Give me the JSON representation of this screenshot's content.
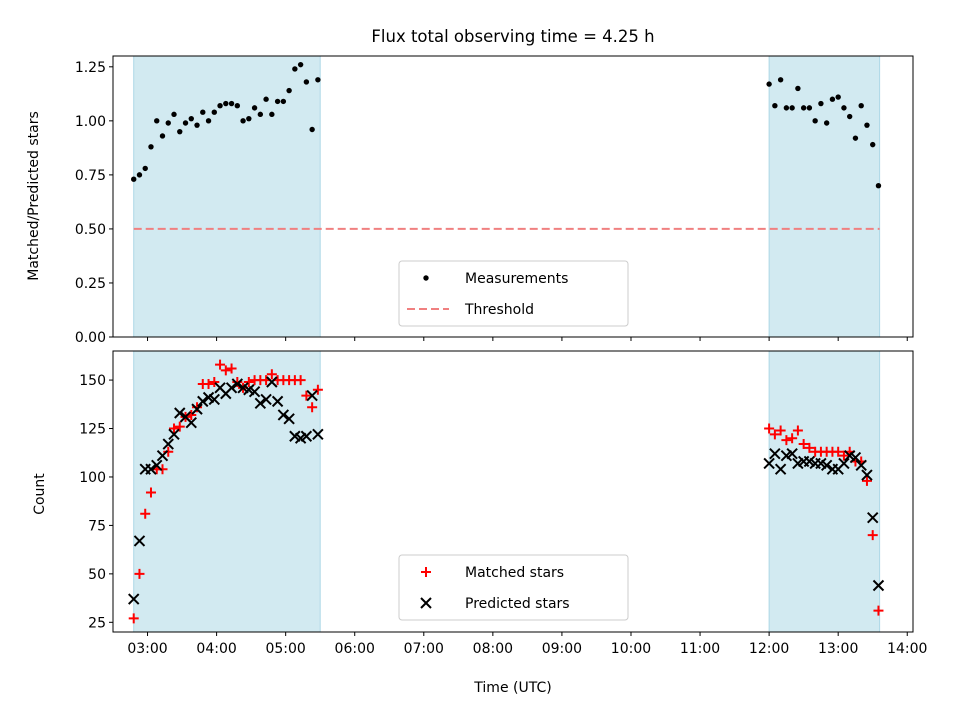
{
  "title": "Flux total observing time = 4.25 h",
  "xlabel": "Time (UTC)",
  "colors": {
    "shade": "#add8e6",
    "measure": "#000000",
    "threshold": "#f08080",
    "matched": "#ff0000",
    "predicted": "#000000"
  },
  "chart_data": [
    {
      "type": "scatter",
      "ylabel": "Matched/Predicted stars",
      "ylim": [
        0,
        1.3
      ],
      "yticks": [
        "0.00",
        "0.25",
        "0.50",
        "0.75",
        "1.00",
        "1.25"
      ],
      "xlim": [
        "02:30",
        "14:05"
      ],
      "xticks": [
        "03:00",
        "04:00",
        "05:00",
        "06:00",
        "07:00",
        "08:00",
        "09:00",
        "10:00",
        "11:00",
        "12:00",
        "13:00",
        "14:00"
      ],
      "shaded_intervals": [
        [
          "02:48",
          "05:30"
        ],
        [
          "12:00",
          "13:36"
        ]
      ],
      "legend_position": "lower center",
      "series": [
        {
          "name": "Measurements",
          "marker": "dot",
          "x": [
            "02:48",
            "02:53",
            "02:58",
            "03:03",
            "03:08",
            "03:13",
            "03:18",
            "03:23",
            "03:28",
            "03:33",
            "03:38",
            "03:43",
            "03:48",
            "03:53",
            "03:58",
            "04:03",
            "04:08",
            "04:13",
            "04:18",
            "04:23",
            "04:28",
            "04:33",
            "04:38",
            "04:43",
            "04:48",
            "04:53",
            "04:58",
            "05:03",
            "05:08",
            "05:13",
            "05:18",
            "05:23",
            "05:28",
            "12:00",
            "12:05",
            "12:10",
            "12:15",
            "12:20",
            "12:25",
            "12:30",
            "12:35",
            "12:40",
            "12:45",
            "12:50",
            "12:55",
            "13:00",
            "13:05",
            "13:10",
            "13:15",
            "13:20",
            "13:25",
            "13:30",
            "13:35"
          ],
          "y": [
            0.73,
            0.75,
            0.78,
            0.88,
            1.0,
            0.93,
            0.99,
            1.03,
            0.95,
            0.99,
            1.01,
            0.98,
            1.04,
            1.0,
            1.04,
            1.07,
            1.08,
            1.08,
            1.07,
            1.0,
            1.01,
            1.06,
            1.03,
            1.1,
            1.03,
            1.09,
            1.09,
            1.14,
            1.24,
            1.26,
            1.18,
            0.96,
            1.19,
            1.17,
            1.07,
            1.19,
            1.06,
            1.06,
            1.15,
            1.06,
            1.06,
            1.0,
            1.08,
            0.99,
            1.1,
            1.11,
            1.06,
            1.02,
            0.92,
            1.07,
            0.98,
            0.89,
            0.7
          ]
        },
        {
          "name": "Threshold",
          "type": "line",
          "style": "dashed",
          "x": [
            "02:48",
            "13:36"
          ],
          "y": [
            0.5,
            0.5
          ]
        }
      ]
    },
    {
      "type": "scatter",
      "ylabel": "Count",
      "ylim": [
        20,
        165
      ],
      "yticks": [
        "25",
        "50",
        "75",
        "100",
        "125",
        "150"
      ],
      "xlim": [
        "02:30",
        "14:05"
      ],
      "xticks": [
        "03:00",
        "04:00",
        "05:00",
        "06:00",
        "07:00",
        "08:00",
        "09:00",
        "10:00",
        "11:00",
        "12:00",
        "13:00",
        "14:00"
      ],
      "shaded_intervals": [
        [
          "02:48",
          "05:30"
        ],
        [
          "12:00",
          "13:36"
        ]
      ],
      "legend_position": "lower center",
      "series": [
        {
          "name": "Matched stars",
          "marker": "plus",
          "x": [
            "02:48",
            "02:53",
            "02:58",
            "03:03",
            "03:08",
            "03:13",
            "03:18",
            "03:23",
            "03:28",
            "03:33",
            "03:38",
            "03:43",
            "03:48",
            "03:53",
            "03:58",
            "04:03",
            "04:08",
            "04:13",
            "04:18",
            "04:23",
            "04:28",
            "04:33",
            "04:38",
            "04:43",
            "04:48",
            "04:53",
            "04:58",
            "05:03",
            "05:08",
            "05:13",
            "05:18",
            "05:23",
            "05:28",
            "12:00",
            "12:05",
            "12:10",
            "12:15",
            "12:20",
            "12:25",
            "12:30",
            "12:35",
            "12:40",
            "12:45",
            "12:50",
            "12:55",
            "13:00",
            "13:05",
            "13:10",
            "13:15",
            "13:20",
            "13:25",
            "13:30",
            "13:35"
          ],
          "y": [
            27,
            50,
            81,
            92,
            104,
            104,
            113,
            125,
            126,
            131,
            132,
            136,
            148,
            148,
            149,
            158,
            155,
            156,
            149,
            146,
            149,
            150,
            150,
            150,
            153,
            150,
            150,
            150,
            150,
            150,
            142,
            136,
            145,
            125,
            122,
            124,
            119,
            120,
            124,
            117,
            115,
            113,
            113,
            113,
            113,
            113,
            111,
            113,
            108,
            108,
            98,
            70,
            31
          ]
        },
        {
          "name": "Predicted stars",
          "marker": "x",
          "x": [
            "02:48",
            "02:53",
            "02:58",
            "03:03",
            "03:08",
            "03:13",
            "03:18",
            "03:23",
            "03:28",
            "03:33",
            "03:38",
            "03:43",
            "03:48",
            "03:53",
            "03:58",
            "04:03",
            "04:08",
            "04:13",
            "04:18",
            "04:23",
            "04:28",
            "04:33",
            "04:38",
            "04:43",
            "04:48",
            "04:53",
            "04:58",
            "05:03",
            "05:08",
            "05:13",
            "05:18",
            "05:23",
            "05:28",
            "12:00",
            "12:05",
            "12:10",
            "12:15",
            "12:20",
            "12:25",
            "12:30",
            "12:35",
            "12:40",
            "12:45",
            "12:50",
            "12:55",
            "13:00",
            "13:05",
            "13:10",
            "13:15",
            "13:20",
            "13:25",
            "13:30",
            "13:35"
          ],
          "y": [
            37,
            67,
            104,
            104,
            106,
            111,
            117,
            122,
            133,
            131,
            128,
            135,
            139,
            141,
            140,
            146,
            143,
            146,
            148,
            146,
            145,
            144,
            138,
            140,
            149,
            139,
            132,
            130,
            121,
            120,
            121,
            142,
            122,
            107,
            112,
            104,
            111,
            112,
            107,
            108,
            108,
            107,
            107,
            106,
            104,
            104,
            107,
            111,
            110,
            106,
            101,
            79,
            44
          ]
        }
      ]
    }
  ]
}
